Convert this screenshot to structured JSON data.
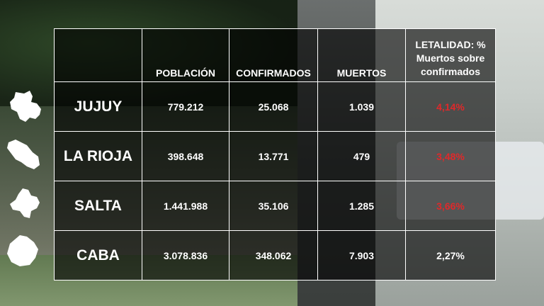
{
  "header": {
    "poblacion": "POBLACIÓN",
    "confirmados": "CONFIRMADOS",
    "muertos": "MUERTOS",
    "letalidad_line1": "LETALIDAD: %",
    "letalidad_line2": "Muertos sobre",
    "letalidad_line3": "confirmados"
  },
  "rows": [
    {
      "name": "JUJUY",
      "poblacion": "779.212",
      "confirmados": "25.068",
      "muertos": "1.039",
      "letalidad": "4,14%",
      "letalidad_color": "#e0282a"
    },
    {
      "name": "LA RIOJA",
      "poblacion": "398.648",
      "confirmados": "13.771",
      "muertos": "479",
      "letalidad": "3,48%",
      "letalidad_color": "#e0282a"
    },
    {
      "name": "SALTA",
      "poblacion": "1.441.988",
      "confirmados": "35.106",
      "muertos": "1.285",
      "letalidad": "3,66%",
      "letalidad_color": "#e0282a"
    },
    {
      "name": "CABA",
      "poblacion": "3.078.836",
      "confirmados": "348.062",
      "muertos": "7.903",
      "letalidad": "2,27%",
      "letalidad_color": "#ffffff"
    }
  ],
  "icons": [
    "jujuy-map-icon",
    "la-rioja-map-icon",
    "salta-map-icon",
    "caba-map-icon"
  ]
}
